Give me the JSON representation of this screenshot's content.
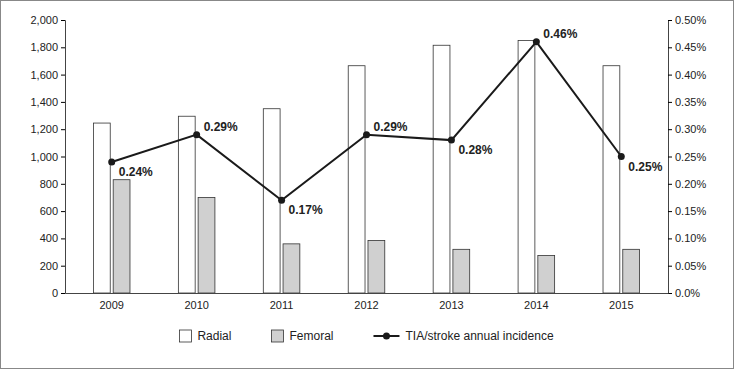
{
  "chart_data": {
    "type": "bar",
    "categories": [
      "2009",
      "2010",
      "2011",
      "2012",
      "2013",
      "2014",
      "2015"
    ],
    "series": [
      {
        "name": "Radial",
        "type": "bar",
        "color": "#ffffff",
        "values": [
          1245,
          1295,
          1350,
          1665,
          1815,
          1850,
          1665
        ]
      },
      {
        "name": "Femoral",
        "type": "bar",
        "color": "#d0d0d0",
        "values": [
          830,
          700,
          360,
          385,
          320,
          275,
          320
        ]
      },
      {
        "name": "TIA/stroke annual incidence",
        "type": "line",
        "axis": "y2",
        "color": "#1a1a1a",
        "marker": "circle",
        "line_style": "solid",
        "data_labels": true,
        "values": [
          0.24,
          0.29,
          0.17,
          0.29,
          0.28,
          0.46,
          0.25
        ],
        "value_labels": [
          "0.24%",
          "0.29%",
          "0.17%",
          "0.29%",
          "0.28%",
          "0.46%",
          "0.25%"
        ]
      }
    ],
    "ylim": [
      0,
      2000
    ],
    "yticks": [
      0,
      200,
      400,
      600,
      800,
      {
        "value": 1000,
        "label": "1,000"
      },
      {
        "value": 1200,
        "label": "1,200"
      },
      {
        "value": 1400,
        "label": "1,400"
      },
      {
        "value": 1600,
        "label": "1,600"
      },
      {
        "value": 1800,
        "label": "1,800"
      },
      {
        "value": 2000,
        "label": "2,000"
      }
    ],
    "y2lim": [
      0,
      0.5
    ],
    "y2ticks": [
      {
        "value": 0,
        "label": "0.0%"
      },
      {
        "value": 0.05,
        "label": "0.05%"
      },
      {
        "value": 0.1,
        "label": "0.10%"
      },
      {
        "value": 0.15,
        "label": "0.15%"
      },
      {
        "value": 0.2,
        "label": "0.20%"
      },
      {
        "value": 0.25,
        "label": "0.25%"
      },
      {
        "value": 0.3,
        "label": "0.30%"
      },
      {
        "value": 0.35,
        "label": "0.35%"
      },
      {
        "value": 0.4,
        "label": "0.40%"
      },
      {
        "value": 0.45,
        "label": "0.45%"
      },
      {
        "value": 0.5,
        "label": "0.50%"
      }
    ],
    "grid": false,
    "legend": "bottom"
  }
}
